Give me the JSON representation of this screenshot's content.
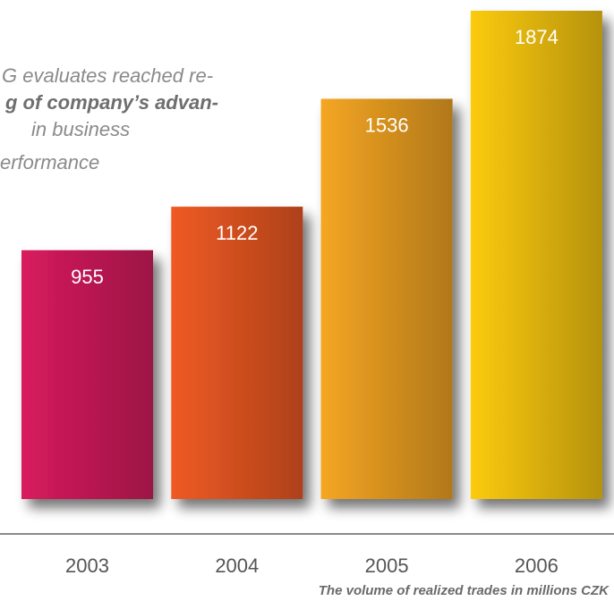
{
  "chart_data": {
    "type": "bar",
    "annotation_lines": [
      "G evaluates reached re-",
      "g of company’s advan-",
      "in business",
      "erformance"
    ],
    "categories": [
      "2003",
      "2004",
      "2005",
      "2006"
    ],
    "values": [
      955,
      1122,
      1536,
      1874
    ],
    "colors": [
      "#d81b5e",
      "#f05a24",
      "#f5a623",
      "#fccb0a"
    ],
    "caption": "The volume of realized trades in millions CZK"
  }
}
